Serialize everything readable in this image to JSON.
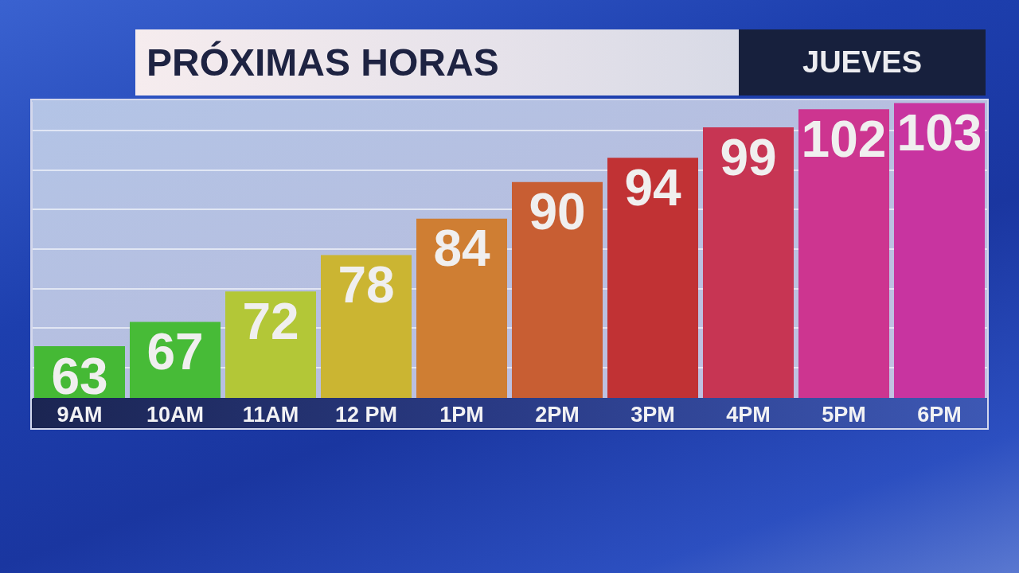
{
  "chart_data": {
    "type": "bar",
    "title": "PRÓXIMAS HORAS",
    "subtitle": "JUEVES",
    "categories": [
      "9AM",
      "10AM",
      "11AM",
      "12 PM",
      "1PM",
      "2PM",
      "3PM",
      "4PM",
      "5PM",
      "6PM"
    ],
    "values": [
      63,
      67,
      72,
      78,
      84,
      90,
      94,
      99,
      102,
      103
    ],
    "colors": [
      "#45b935",
      "#47bb37",
      "#b3c737",
      "#cbb532",
      "#cf7e33",
      "#c85e33",
      "#c13234",
      "#c73553",
      "#cd3590",
      "#c834a0"
    ],
    "ylim": [
      54.5,
      103.2
    ],
    "yticks": [
      {
        "value": 59.5,
        "label": null
      },
      {
        "value": 66,
        "label": null
      },
      {
        "value": 72.5,
        "label": null
      },
      {
        "value": 79,
        "label": null
      },
      {
        "value": 85.5,
        "label": null
      },
      {
        "value": 92,
        "label": null
      },
      {
        "value": 98.5,
        "label": null
      }
    ],
    "grid": "y",
    "tick_labels": "x",
    "data_labels": true,
    "legend": false
  }
}
